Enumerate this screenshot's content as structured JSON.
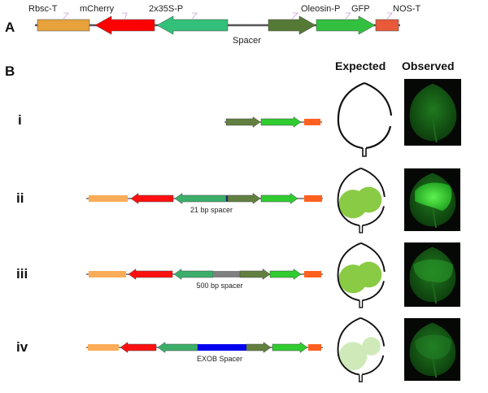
{
  "panel_a": {
    "label": "A",
    "parts": [
      {
        "name": "Rbsc-T",
        "color": "#e8a23c",
        "shape": "box"
      },
      {
        "name": "mCherry",
        "color": "#ff0000",
        "shape": "arrow-left"
      },
      {
        "name": "2x35S-P",
        "color": "#33c07a",
        "shape": "arrow-left"
      },
      {
        "name": "Spacer",
        "color": "#555555",
        "shape": "line"
      },
      {
        "name": "Oleosin-P",
        "color": "#557a35",
        "shape": "arrow-right"
      },
      {
        "name": "GFP",
        "color": "#33c040",
        "shape": "arrow-right"
      },
      {
        "name": "NOS-T",
        "color": "#e85a3a",
        "shape": "box"
      }
    ]
  },
  "panel_b": {
    "label": "B",
    "expected_header": "Expected",
    "observed_header": "Observed",
    "rows": [
      {
        "id": "i",
        "spacer_label": "",
        "spacer_color": "",
        "expected": "none"
      },
      {
        "id": "ii",
        "spacer_label": "21 bp spacer",
        "spacer_color": "#1b2a6b",
        "expected": "strong"
      },
      {
        "id": "iii",
        "spacer_label": "500 bp spacer",
        "spacer_color": "#808080",
        "expected": "strong"
      },
      {
        "id": "iv",
        "spacer_label": "EXOB Spacer",
        "spacer_color": "#0000ee",
        "expected": "weak"
      }
    ]
  },
  "colors": {
    "rbsc": "#fbac58",
    "mcherry": "#ff1010",
    "p35s": "#3cae6a",
    "oleosin": "#628040",
    "gfp": "#30cc30",
    "nos": "#ff6020",
    "expected_strong": "#8acb45",
    "expected_weak": "#cfeab8"
  }
}
